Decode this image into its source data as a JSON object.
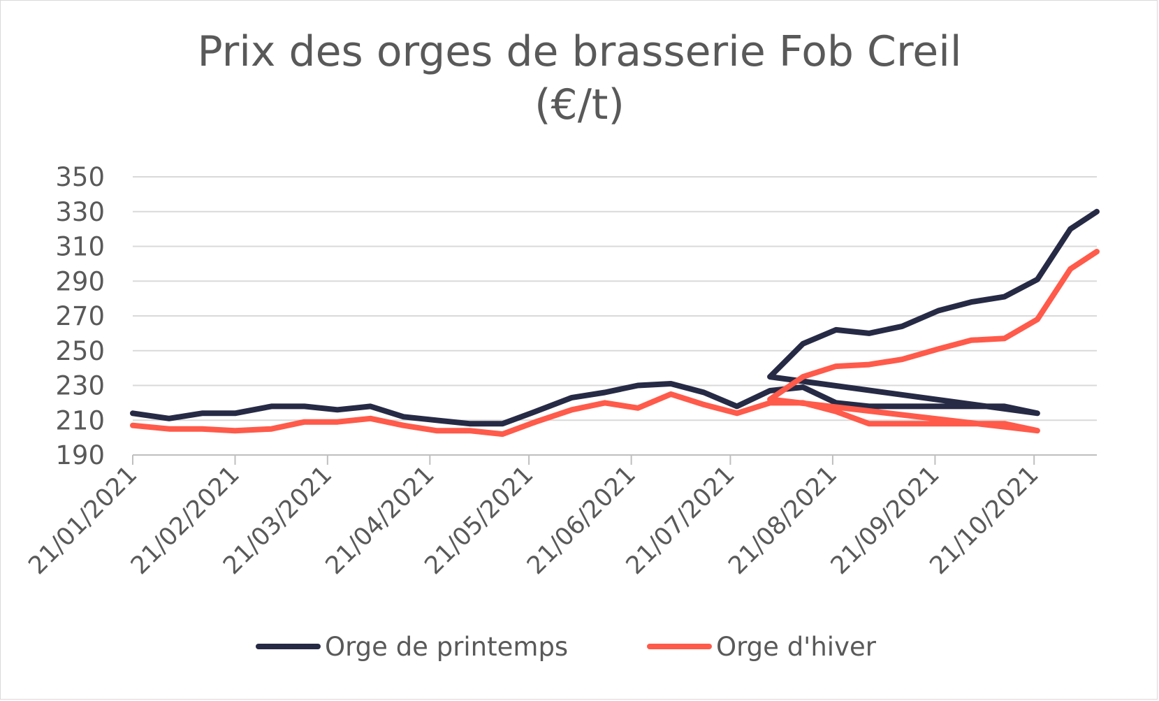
{
  "chart_data": {
    "type": "line",
    "title_line1": "Prix des orges de brasserie Fob Creil",
    "title_line2": "(€/t)",
    "xlabel": "",
    "ylabel": "",
    "ylim": [
      190,
      350
    ],
    "y_ticks": [
      190,
      210,
      230,
      250,
      270,
      290,
      310,
      330,
      350
    ],
    "x_tick_labels": [
      "21/01/2021",
      "21/02/2021",
      "21/03/2021",
      "21/04/2021",
      "21/05/2021",
      "21/06/2021",
      "21/07/2021",
      "21/08/2021",
      "21/09/2021",
      "21/10/2021"
    ],
    "x_dates": [
      "2021-01-21",
      "2021-02-01",
      "2021-02-11",
      "2021-02-21",
      "2021-03-04",
      "2021-03-14",
      "2021-03-24",
      "2021-04-03",
      "2021-04-13",
      "2021-04-23",
      "2021-05-03",
      "2021-05-13",
      "2021-05-23",
      "2021-06-03",
      "2021-06-13",
      "2021-06-23",
      "2021-07-03",
      "2021-07-13",
      "2021-07-23",
      "2021-08-02",
      "2021-08-12",
      "2021-08-22",
      "2021-09-01",
      "2021-09-11",
      "2021-09-22",
      "2021-10-02",
      "2021-10-12",
      "2021-10-22"
    ],
    "grid": true,
    "legend_position": "bottom",
    "series": [
      {
        "name": "Orge de printemps",
        "color": "#262a45",
        "values": [
          214,
          211,
          214,
          214,
          218,
          218,
          216,
          218,
          212,
          210,
          208,
          208,
          215,
          223,
          226,
          230,
          231,
          226,
          218,
          227,
          229,
          220,
          218,
          218,
          218,
          218,
          218,
          214
        ]
      },
      {
        "name": "Orge d'hiver",
        "color": "#ff5a4a",
        "values": [
          207,
          205,
          205,
          204,
          205,
          209,
          209,
          211,
          207,
          204,
          204,
          202,
          209,
          216,
          220,
          217,
          225,
          219,
          214,
          220,
          220,
          215,
          208,
          208,
          208,
          208,
          208,
          204
        ]
      }
    ],
    "series_continued": [
      {
        "name": "Orge de printemps",
        "x_dates": [
          "2021-07-23",
          "2021-08-02",
          "2021-08-12",
          "2021-08-22",
          "2021-09-01",
          "2021-09-11",
          "2021-09-22",
          "2021-10-02",
          "2021-10-12",
          "2021-10-22",
          "2021-11-01",
          "2021-11-09"
        ],
        "values": [
          214,
          235,
          254,
          262,
          260,
          264,
          273,
          278,
          281,
          291,
          320,
          330
        ]
      },
      {
        "name": "Orge d'hiver",
        "x_dates": [
          "2021-07-23",
          "2021-08-02",
          "2021-08-12",
          "2021-08-22",
          "2021-09-01",
          "2021-09-11",
          "2021-09-22",
          "2021-10-02",
          "2021-10-12",
          "2021-10-22",
          "2021-11-01",
          "2021-11-09"
        ],
        "values": [
          204,
          222,
          235,
          241,
          242,
          245,
          251,
          256,
          257,
          268,
          297,
          307
        ]
      }
    ]
  }
}
